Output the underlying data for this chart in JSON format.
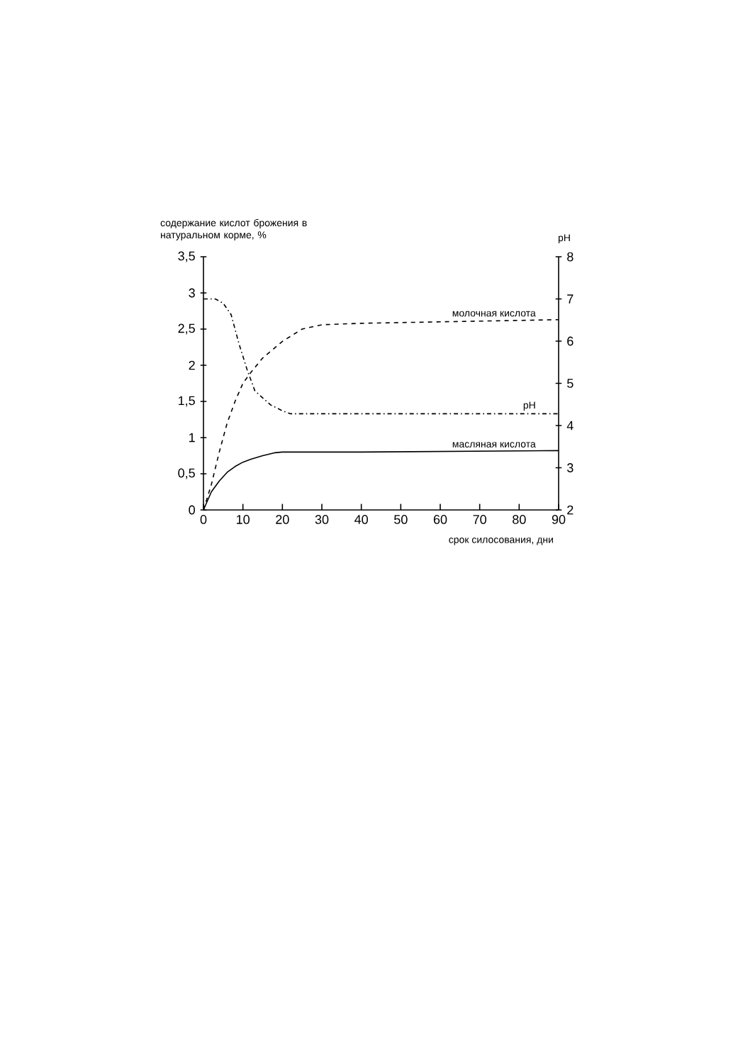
{
  "chart_data": {
    "type": "line",
    "ylabel": "содержание кислот брожения в натуральном корме, %",
    "xlabel": "срок силосования, дни",
    "y2label": "pH",
    "xlim": [
      0,
      90
    ],
    "xticks": [
      0,
      10,
      20,
      30,
      40,
      50,
      60,
      70,
      80,
      90
    ],
    "ylim": [
      0,
      3.5
    ],
    "yticks": [
      0,
      {
        "value": 0.5,
        "label": "0,5"
      },
      1,
      {
        "value": 1.5,
        "label": "1,5"
      },
      2,
      {
        "value": 2.5,
        "label": "2,5"
      },
      3,
      {
        "value": 3.5,
        "label": "3,5"
      }
    ],
    "y2lim": [
      2,
      8
    ],
    "y2ticks": [
      2,
      3,
      4,
      5,
      6,
      7,
      8
    ],
    "grid": false,
    "marker": "none",
    "series": [
      {
        "name": "молочная кислота",
        "color": "#000000",
        "line_style": "dashed",
        "x": [
          0,
          2,
          4,
          6,
          8,
          10,
          12,
          15,
          20,
          25,
          30,
          40,
          60,
          90
        ],
        "values": [
          0,
          0.35,
          0.8,
          1.2,
          1.5,
          1.75,
          1.9,
          2.1,
          2.33,
          2.5,
          2.56,
          2.58,
          2.6,
          2.63
        ]
      },
      {
        "name": "pH",
        "color": "#000000",
        "line_style": "dotted",
        "axis": "y2",
        "x": [
          0,
          3,
          5,
          7,
          9,
          11,
          13,
          14,
          17,
          20,
          22,
          30,
          90
        ],
        "values": [
          7.0,
          7.0,
          6.9,
          6.63,
          5.94,
          5.34,
          4.83,
          4.74,
          4.49,
          4.35,
          4.28,
          4.28,
          4.28
        ]
      },
      {
        "name": "масляная кислота",
        "color": "#000000",
        "line_style": "solid",
        "x": [
          0,
          2,
          4,
          6,
          8,
          10,
          12,
          15,
          18,
          20,
          40,
          90
        ],
        "values": [
          0,
          0.25,
          0.4,
          0.52,
          0.6,
          0.66,
          0.7,
          0.75,
          0.79,
          0.8,
          0.8,
          0.82
        ]
      }
    ]
  }
}
